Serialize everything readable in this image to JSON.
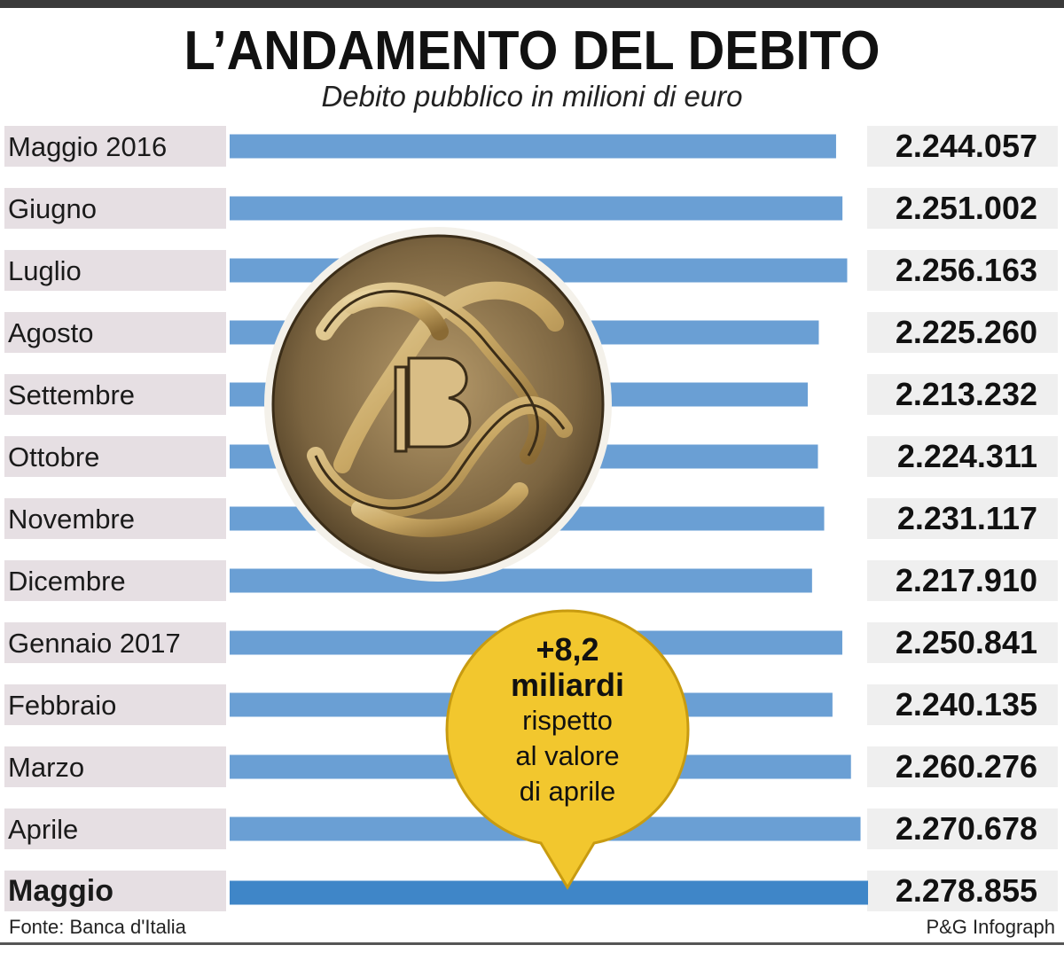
{
  "header": {
    "title": "L’ANDAMENTO DEL DEBITO",
    "subtitle": "Debito pubblico in milioni di euro"
  },
  "callout": {
    "line1": "+8,2",
    "line2": "miliardi",
    "line3": "rispetto",
    "line4": "al valore",
    "line5": "di aprile",
    "color": "#f2c72e"
  },
  "footer": {
    "source": "Fonte: Banca d'Italia",
    "credit": "P&G Infograph"
  },
  "colors": {
    "bar": "#6a9fd4",
    "bar_highlight": "#3f86c8",
    "label_bg": "#e6dfe3",
    "value_bg": "#efefef"
  },
  "seal": {
    "icon": "banca-italia-seal-icon"
  },
  "chart_data": {
    "type": "bar",
    "orientation": "horizontal",
    "title": "L’ANDAMENTO DEL DEBITO",
    "subtitle": "Debito pubblico in milioni di euro",
    "categories": [
      "Maggio 2016",
      "Giugno",
      "Luglio",
      "Agosto",
      "Settembre",
      "Ottobre",
      "Novembre",
      "Dicembre",
      "Gennaio 2017",
      "Febbraio",
      " Marzo",
      "Aprile",
      "Maggio"
    ],
    "values": [
      2244057,
      2251002,
      2256163,
      2225260,
      2213232,
      2224311,
      2231117,
      2217910,
      2250841,
      2240135,
      2260276,
      2270678,
      2278855
    ],
    "value_labels": [
      "2.244.057",
      "2.251.002",
      "2.256.163",
      "2.225.260",
      "2.213.232",
      "2.224.311",
      "2.231.117",
      "2.217.910",
      "2.250.841",
      "2.240.135",
      "2.260.276",
      "2.270.678",
      "2.278.855"
    ],
    "highlight_index": 12,
    "grid": false,
    "legend": "none"
  }
}
